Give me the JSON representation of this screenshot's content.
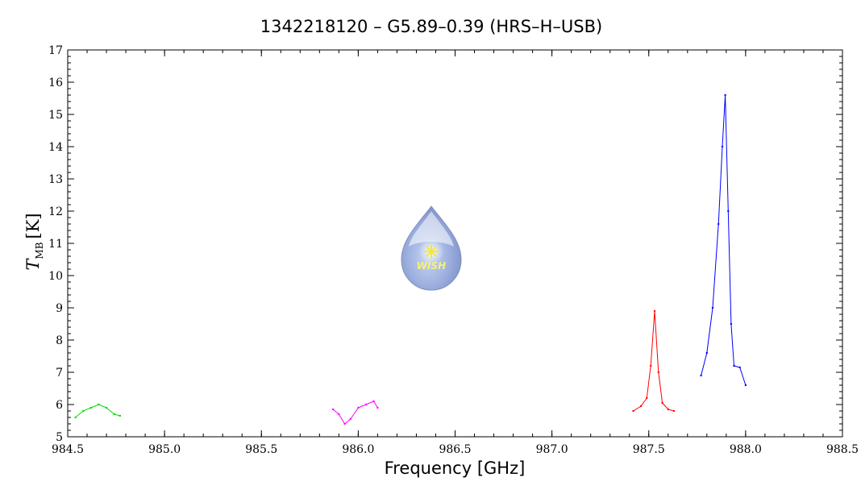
{
  "chart_data": {
    "type": "line",
    "title": "1342218120 – G5.89–0.39 (HRS–H–USB)",
    "xlabel": "Frequency [GHz]",
    "ylabel_main": "T",
    "ylabel_sub": "MB",
    "ylabel_unit": "[K]",
    "xlim": [
      984.5,
      988.5
    ],
    "ylim": [
      5,
      17
    ],
    "xticks": [
      984.5,
      985.0,
      985.5,
      986.0,
      986.5,
      987.0,
      987.5,
      988.0,
      988.5
    ],
    "xtick_labels": [
      "984.5",
      "985.0",
      "985.5",
      "986.0",
      "986.5",
      "987.0",
      "987.5",
      "988.0",
      "988.5"
    ],
    "yticks": [
      5,
      6,
      7,
      8,
      9,
      10,
      11,
      12,
      13,
      14,
      15,
      16,
      17
    ],
    "ytick_labels": [
      "5",
      "6",
      "7",
      "8",
      "9",
      "10",
      "11",
      "12",
      "13",
      "14",
      "15",
      "16",
      "17"
    ],
    "grid": false,
    "logo_text": "WISH",
    "series": [
      {
        "color": "#00dd00",
        "x": [
          984.54,
          984.58,
          984.62,
          984.66,
          984.7,
          984.74,
          984.77
        ],
        "y": [
          5.6,
          5.8,
          5.9,
          6.0,
          5.9,
          5.7,
          5.65
        ]
      },
      {
        "color": "#ff00ff",
        "x": [
          985.87,
          985.9,
          985.93,
          985.96,
          986.0,
          986.04,
          986.08,
          986.1
        ],
        "y": [
          5.85,
          5.7,
          5.4,
          5.55,
          5.9,
          6.0,
          6.1,
          5.9
        ]
      },
      {
        "color": "#ff0000",
        "x": [
          987.42,
          987.46,
          987.49,
          987.51,
          987.53,
          987.55,
          987.57,
          987.6,
          987.63
        ],
        "y": [
          5.8,
          5.95,
          6.2,
          7.2,
          8.9,
          7.0,
          6.05,
          5.85,
          5.8
        ]
      },
      {
        "color": "#0000ff",
        "x": [
          987.77,
          987.8,
          987.83,
          987.86,
          987.88,
          987.895,
          987.91,
          987.925,
          987.94,
          987.97,
          988.0
        ],
        "y": [
          6.9,
          7.6,
          9.0,
          11.6,
          14.0,
          15.6,
          12.0,
          8.5,
          7.2,
          7.15,
          6.6
        ]
      }
    ]
  }
}
